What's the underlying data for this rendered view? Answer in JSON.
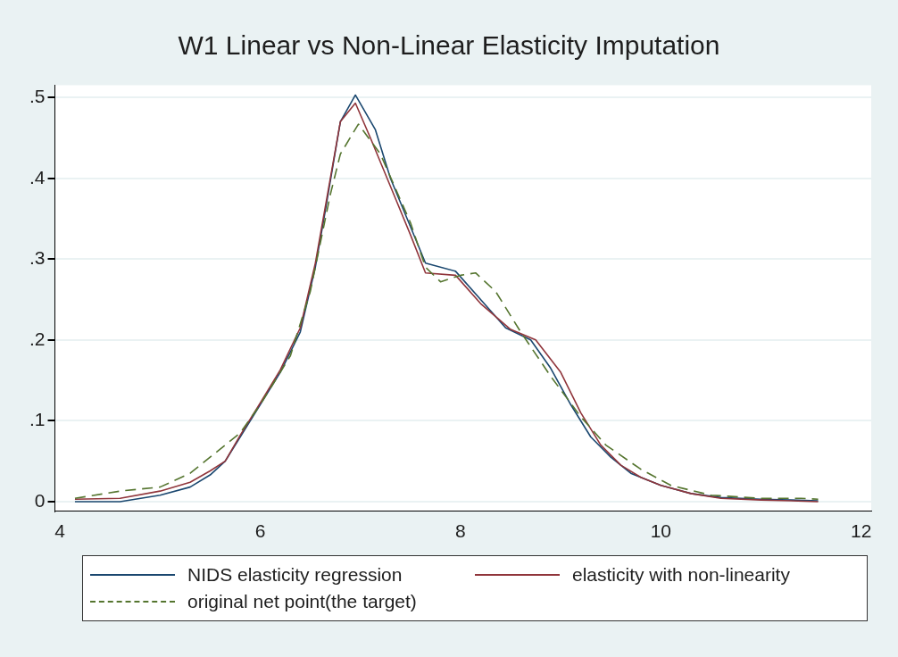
{
  "chart_data": {
    "type": "line",
    "title": "W1 Linear vs Non-Linear Elasticity Imputation",
    "xlim": [
      3.95,
      12.1
    ],
    "xticks": [
      4,
      6,
      8,
      10,
      12
    ],
    "ylim": [
      -0.012,
      0.515
    ],
    "yticks": [
      {
        "value": 0,
        "label": "0"
      },
      {
        "value": 0.1,
        "label": ".1"
      },
      {
        "value": 0.2,
        "label": ".2"
      },
      {
        "value": 0.3,
        "label": ".3"
      },
      {
        "value": 0.4,
        "label": ".4"
      },
      {
        "value": 0.5,
        "label": ".5"
      }
    ],
    "grid": "y",
    "legend": "bottom",
    "series": [
      {
        "name": "NIDS elasticity regression",
        "color": "#1a476f",
        "line_style": "solid",
        "x": [
          4.15,
          4.6,
          5.0,
          5.3,
          5.5,
          5.65,
          5.8,
          6.0,
          6.2,
          6.4,
          6.55,
          6.65,
          6.8,
          6.95,
          7.15,
          7.3,
          7.5,
          7.65,
          7.95,
          8.2,
          8.45,
          8.7,
          8.9,
          9.1,
          9.3,
          9.5,
          9.7,
          10.0,
          10.3,
          10.6,
          11.0,
          11.3,
          11.57
        ],
        "values": [
          0.0,
          0.0,
          0.008,
          0.018,
          0.033,
          0.05,
          0.08,
          0.12,
          0.16,
          0.21,
          0.29,
          0.36,
          0.47,
          0.503,
          0.46,
          0.4,
          0.34,
          0.295,
          0.285,
          0.25,
          0.215,
          0.2,
          0.165,
          0.12,
          0.08,
          0.055,
          0.035,
          0.02,
          0.01,
          0.005,
          0.003,
          0.002,
          0.001
        ]
      },
      {
        "name": "elasticity with non-linearity",
        "color": "#90353b",
        "line_style": "solid",
        "x": [
          4.15,
          4.6,
          5.0,
          5.3,
          5.5,
          5.65,
          5.8,
          6.0,
          6.2,
          6.4,
          6.55,
          6.65,
          6.8,
          6.95,
          7.1,
          7.3,
          7.5,
          7.65,
          7.95,
          8.2,
          8.5,
          8.75,
          9.0,
          9.2,
          9.4,
          9.6,
          9.8,
          10.0,
          10.3,
          10.6,
          11.0,
          11.3,
          11.57
        ],
        "values": [
          0.003,
          0.004,
          0.013,
          0.024,
          0.038,
          0.05,
          0.082,
          0.122,
          0.163,
          0.215,
          0.295,
          0.365,
          0.47,
          0.493,
          0.45,
          0.39,
          0.33,
          0.283,
          0.28,
          0.245,
          0.213,
          0.2,
          0.16,
          0.11,
          0.07,
          0.045,
          0.03,
          0.02,
          0.01,
          0.004,
          0.002,
          0.001,
          0.0
        ]
      },
      {
        "name": "original net point(the target)",
        "color": "#55752f",
        "line_style": "dashed",
        "x": [
          4.15,
          4.6,
          5.0,
          5.3,
          5.6,
          5.8,
          6.0,
          6.3,
          6.5,
          6.7,
          6.8,
          6.98,
          7.2,
          7.5,
          7.65,
          7.8,
          8.0,
          8.15,
          8.35,
          8.6,
          8.9,
          9.2,
          9.45,
          9.8,
          10.1,
          10.5,
          11.0,
          11.4,
          11.57
        ],
        "values": [
          0.004,
          0.013,
          0.018,
          0.035,
          0.065,
          0.085,
          0.12,
          0.18,
          0.26,
          0.38,
          0.43,
          0.467,
          0.43,
          0.345,
          0.29,
          0.272,
          0.28,
          0.283,
          0.26,
          0.21,
          0.155,
          0.105,
          0.07,
          0.04,
          0.02,
          0.008,
          0.004,
          0.004,
          0.003
        ]
      }
    ]
  }
}
